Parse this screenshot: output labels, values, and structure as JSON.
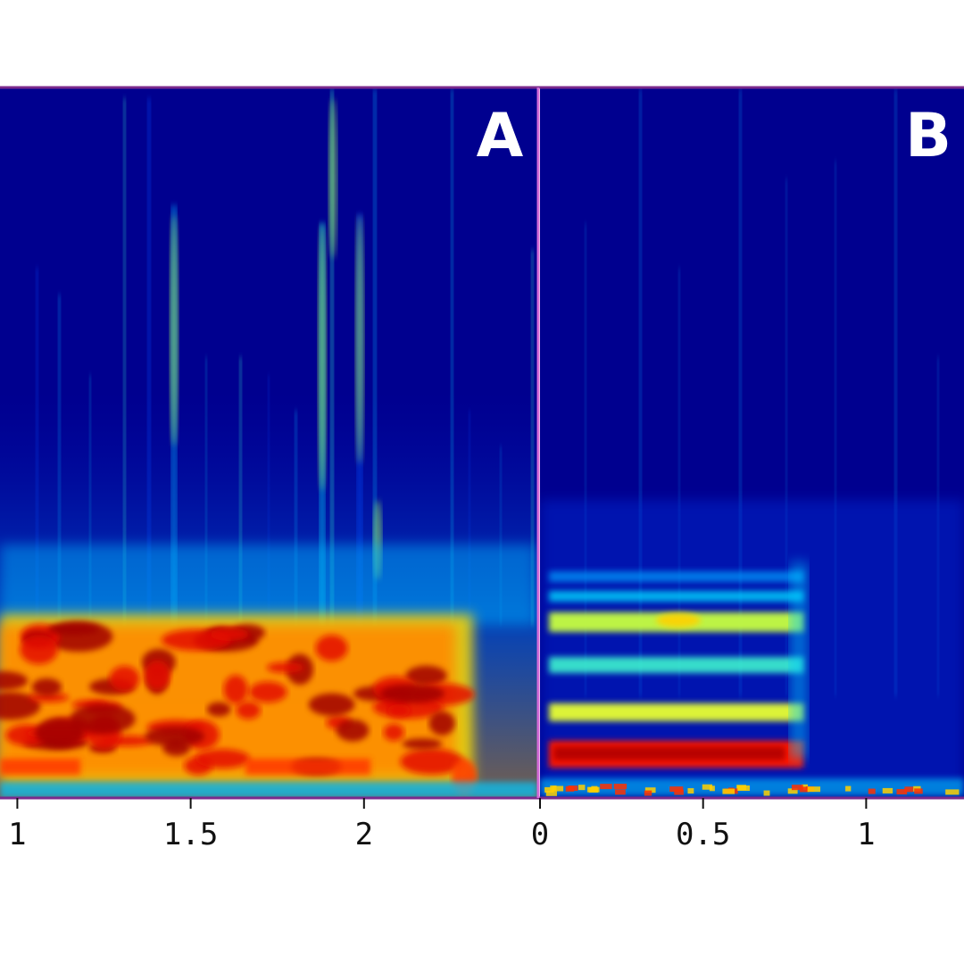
{
  "chart_data": [
    {
      "type": "heatmap",
      "panel_label": "A",
      "colormap": "jet",
      "x_ticks": [
        "1",
        "1.5",
        "2"
      ],
      "x_tick_values": [
        1,
        1.5,
        2
      ],
      "xlim": [
        0.95,
        2.5
      ],
      "energy_profile": "broadband bursts, strongest in lower bands with vertical transient streaks"
    },
    {
      "type": "heatmap",
      "panel_label": "B",
      "colormap": "jet",
      "x_ticks": [
        "0",
        "0.5",
        "1"
      ],
      "x_tick_values": [
        0,
        0.5,
        1
      ],
      "xlim": [
        0,
        1.3
      ],
      "energy_profile": "steady harmonic bands from 0 to about 0.8, then fading"
    }
  ],
  "colors": {
    "frame": "#7a2a8c",
    "divider": "#d46ad8",
    "background_low": "#00008f"
  }
}
